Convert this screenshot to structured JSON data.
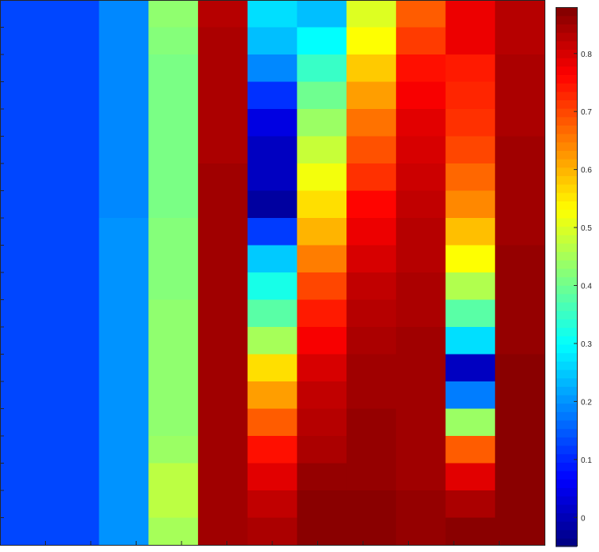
{
  "chart_data": {
    "type": "heatmap",
    "colormap": "jet",
    "clim": [
      -0.05,
      0.88
    ],
    "rows": 20,
    "cols": 11,
    "title": "",
    "xlabel": "",
    "ylabel": "",
    "colorbar": {
      "location": "right",
      "ticks": [
        0,
        0.1,
        0.2,
        0.3,
        0.4,
        0.5,
        0.6,
        0.7,
        0.8
      ],
      "tick_labels": [
        "0",
        "0.1",
        "0.2",
        "0.3",
        "0.4",
        "0.5",
        "0.6",
        "0.7",
        "0.8"
      ]
    },
    "values": [
      [
        0.13,
        0.13,
        0.19,
        0.43,
        0.83,
        0.27,
        0.24,
        0.5,
        0.68,
        0.78,
        0.83
      ],
      [
        0.13,
        0.13,
        0.19,
        0.42,
        0.84,
        0.24,
        0.3,
        0.53,
        0.71,
        0.78,
        0.83
      ],
      [
        0.13,
        0.13,
        0.19,
        0.41,
        0.84,
        0.19,
        0.35,
        0.58,
        0.75,
        0.74,
        0.84
      ],
      [
        0.13,
        0.13,
        0.19,
        0.41,
        0.84,
        0.11,
        0.4,
        0.62,
        0.77,
        0.73,
        0.84
      ],
      [
        0.13,
        0.13,
        0.19,
        0.41,
        0.84,
        0.04,
        0.44,
        0.66,
        0.79,
        0.72,
        0.84
      ],
      [
        0.13,
        0.13,
        0.19,
        0.41,
        0.84,
        0.01,
        0.48,
        0.69,
        0.8,
        0.7,
        0.85
      ],
      [
        0.13,
        0.13,
        0.19,
        0.41,
        0.85,
        0.01,
        0.52,
        0.72,
        0.81,
        0.67,
        0.85
      ],
      [
        0.13,
        0.13,
        0.19,
        0.41,
        0.85,
        -0.02,
        0.56,
        0.76,
        0.82,
        0.64,
        0.85
      ],
      [
        0.13,
        0.13,
        0.2,
        0.42,
        0.85,
        0.12,
        0.6,
        0.78,
        0.83,
        0.59,
        0.85
      ],
      [
        0.13,
        0.13,
        0.2,
        0.42,
        0.85,
        0.25,
        0.65,
        0.8,
        0.83,
        0.53,
        0.86
      ],
      [
        0.13,
        0.13,
        0.2,
        0.42,
        0.85,
        0.32,
        0.7,
        0.82,
        0.84,
        0.46,
        0.86
      ],
      [
        0.13,
        0.13,
        0.2,
        0.43,
        0.85,
        0.38,
        0.74,
        0.83,
        0.84,
        0.38,
        0.86
      ],
      [
        0.13,
        0.13,
        0.2,
        0.43,
        0.85,
        0.45,
        0.77,
        0.84,
        0.85,
        0.27,
        0.86
      ],
      [
        0.13,
        0.13,
        0.2,
        0.43,
        0.85,
        0.56,
        0.8,
        0.85,
        0.85,
        0.01,
        0.87
      ],
      [
        0.13,
        0.13,
        0.2,
        0.43,
        0.85,
        0.62,
        0.82,
        0.85,
        0.85,
        0.18,
        0.87
      ],
      [
        0.13,
        0.13,
        0.2,
        0.43,
        0.85,
        0.68,
        0.83,
        0.86,
        0.85,
        0.44,
        0.87
      ],
      [
        0.13,
        0.13,
        0.2,
        0.44,
        0.85,
        0.75,
        0.84,
        0.86,
        0.85,
        0.68,
        0.87
      ],
      [
        0.13,
        0.13,
        0.2,
        0.47,
        0.85,
        0.79,
        0.86,
        0.86,
        0.85,
        0.79,
        0.87
      ],
      [
        0.13,
        0.13,
        0.2,
        0.47,
        0.85,
        0.82,
        0.87,
        0.87,
        0.86,
        0.84,
        0.87
      ],
      [
        0.13,
        0.13,
        0.2,
        0.45,
        0.85,
        0.84,
        0.87,
        0.87,
        0.86,
        0.87,
        0.87
      ]
    ]
  }
}
